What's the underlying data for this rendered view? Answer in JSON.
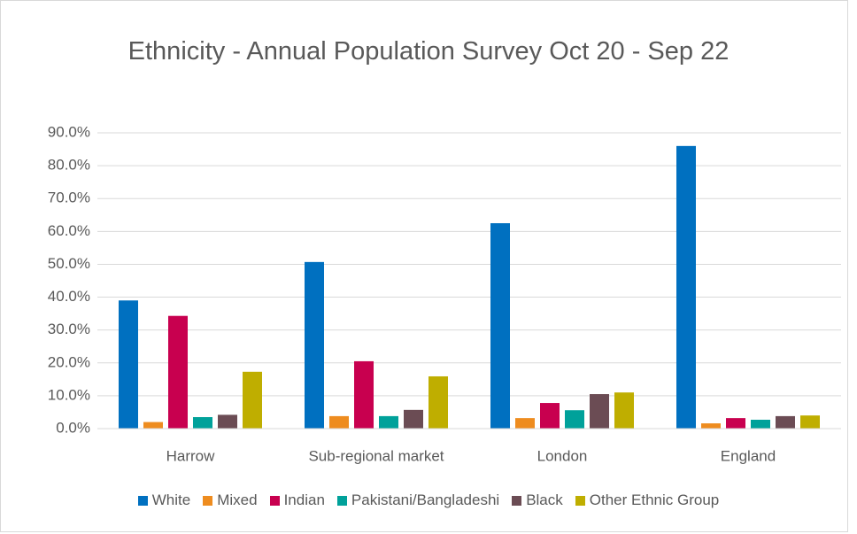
{
  "chart_data": {
    "type": "bar",
    "title": "Ethnicity - Annual Population Survey Oct 20 - Sep 22",
    "categories": [
      "Harrow",
      "Sub-regional market",
      "London",
      "England"
    ],
    "series": [
      {
        "name": "White",
        "color": "#0070c0",
        "values": [
          39.0,
          50.7,
          62.5,
          86.0
        ]
      },
      {
        "name": "Mixed",
        "color": "#ee8c1f",
        "values": [
          2.0,
          3.8,
          3.2,
          1.6
        ]
      },
      {
        "name": "Indian",
        "color": "#c8004f",
        "values": [
          34.3,
          20.5,
          7.8,
          3.2
        ]
      },
      {
        "name": "Pakistani/Bangladeshi",
        "color": "#00a19a",
        "values": [
          3.5,
          3.8,
          5.6,
          2.7
        ]
      },
      {
        "name": "Black",
        "color": "#6b4c54",
        "values": [
          4.2,
          5.7,
          10.5,
          3.8
        ]
      },
      {
        "name": "Other Ethnic Group",
        "color": "#bfae00",
        "values": [
          17.3,
          15.9,
          11.0,
          4.0
        ]
      }
    ],
    "ylim": [
      0,
      90
    ],
    "yticks": [
      {
        "value": 0,
        "label": "0.0%"
      },
      {
        "value": 10,
        "label": "10.0%"
      },
      {
        "value": 20,
        "label": "20.0%"
      },
      {
        "value": 30,
        "label": "30.0%"
      },
      {
        "value": 40,
        "label": "40.0%"
      },
      {
        "value": 50,
        "label": "50.0%"
      },
      {
        "value": 60,
        "label": "60.0%"
      },
      {
        "value": 70,
        "label": "70.0%"
      },
      {
        "value": 80,
        "label": "80.0%"
      },
      {
        "value": 90,
        "label": "90.0%"
      }
    ],
    "grid": true,
    "legend": "bottom"
  }
}
